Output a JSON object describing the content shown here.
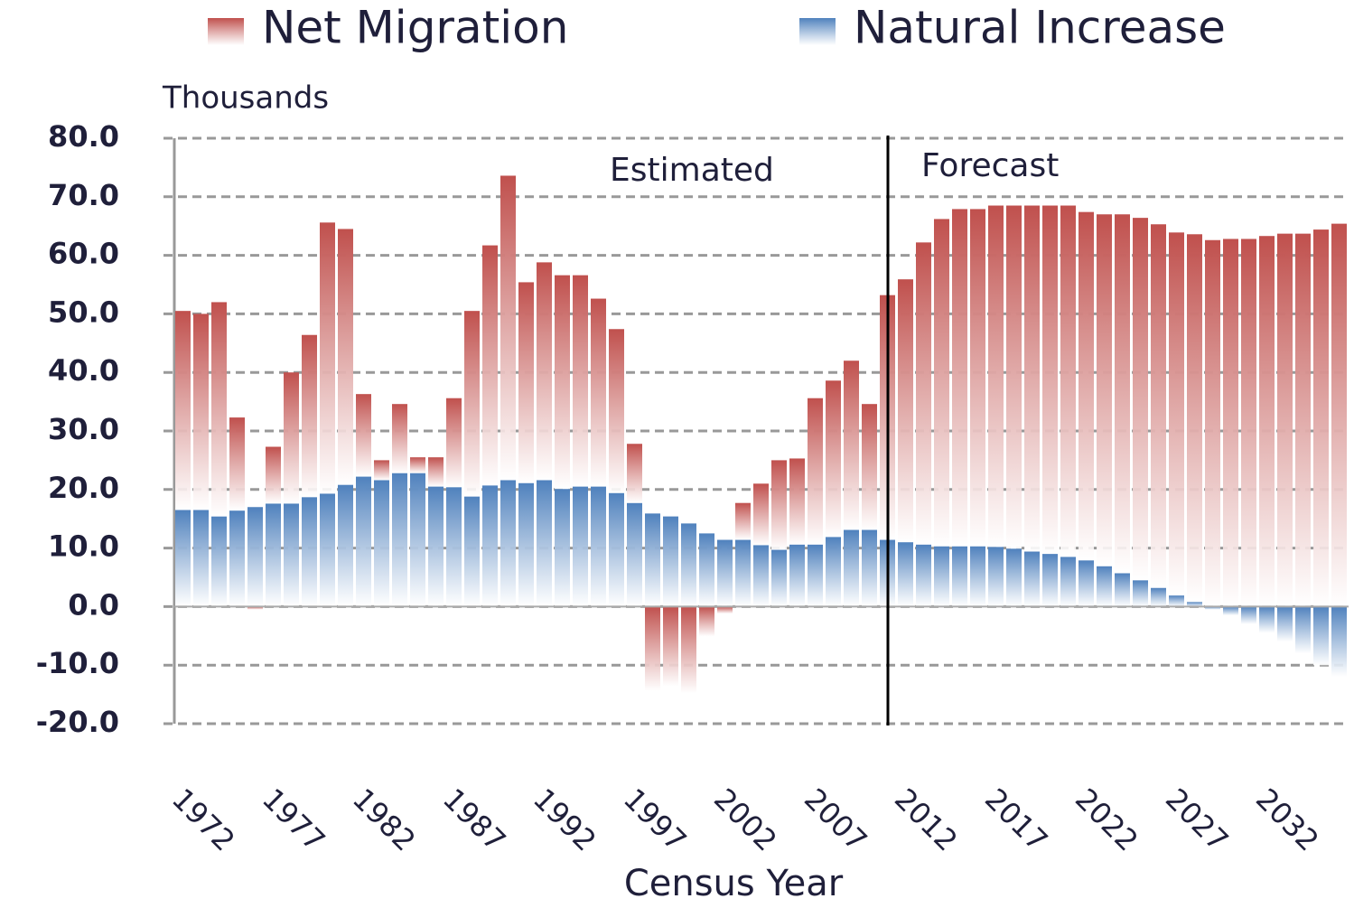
{
  "chart_data": {
    "type": "stacked_bar",
    "title_legend": true,
    "ylabel": "Thousands",
    "xlabel": "Census Year",
    "annotations": [
      "Estimated",
      "Forecast"
    ],
    "categories": [
      "1972",
      null,
      null,
      null,
      null,
      "1977",
      null,
      null,
      null,
      null,
      "1982",
      null,
      null,
      null,
      null,
      "1987",
      null,
      null,
      null,
      null,
      "1992",
      null,
      null,
      null,
      null,
      "1997",
      null,
      null,
      null,
      null,
      "2002",
      null,
      null,
      null,
      null,
      "2007",
      null,
      null,
      null,
      null,
      "2012",
      null,
      null,
      null,
      null,
      "2017",
      null,
      null,
      null,
      null,
      "2022",
      null,
      null,
      null,
      null,
      "2027",
      null,
      null,
      null,
      null,
      "2032",
      null,
      null,
      null,
      null
    ],
    "series": [
      {
        "name": "Natural Increase",
        "color": "#4f81bd",
        "values": [
          16.5,
          16.5,
          15.4,
          16.4,
          17,
          17.6,
          17.6,
          18.7,
          19.3,
          20.8,
          22.2,
          21.6,
          22.8,
          22.8,
          20.5,
          20.4,
          18.8,
          20.7,
          21.6,
          21.1,
          21.6,
          20.1,
          20.5,
          20.5,
          19.4,
          17.7,
          15.9,
          15.4,
          14.2,
          12.5,
          11.4,
          11.4,
          10.5,
          9.7,
          10.6,
          10.6,
          11.9,
          13.1,
          13.1,
          11.4,
          11,
          10.6,
          10.3,
          10.3,
          10.3,
          10.2,
          9.9,
          9.4,
          9,
          8.5,
          7.9,
          6.9,
          5.7,
          4.5,
          3.2,
          1.9,
          0.8,
          -0.5,
          -1.5,
          -3,
          -4.5,
          -6,
          -8,
          -10,
          -12
        ]
      },
      {
        "name": "Net Migration",
        "color": "#c0504d",
        "values": [
          34,
          33.5,
          36.6,
          15.9,
          -0.5,
          9.7,
          22.4,
          27.7,
          46.3,
          43.7,
          14.1,
          3.4,
          11.8,
          2.7,
          5,
          15.2,
          31.7,
          41,
          52,
          34.3,
          37.2,
          36.5,
          36.1,
          32.1,
          28,
          10.1,
          -14.4,
          -13.6,
          -14.8,
          -5.1,
          -1.2,
          6.3,
          10.5,
          15.3,
          14.7,
          25,
          26.7,
          28.9,
          21.5,
          41.8,
          44.9,
          51.6,
          55.9,
          57.6,
          57.6,
          58.3,
          58.6,
          59.1,
          59.5,
          60,
          59.5,
          60.1,
          61.3,
          61.9,
          62.1,
          62,
          62.8,
          62.6,
          62.8,
          62.8,
          63.3,
          63.7,
          63.7,
          64.4,
          65.4
        ]
      }
    ],
    "ylim": [
      -20,
      80
    ],
    "yticks": [
      {
        "value": -20,
        "label": "-20.0"
      },
      {
        "value": -10,
        "label": "-10.0"
      },
      {
        "value": 0,
        "label": "0.0"
      },
      {
        "value": 10,
        "label": "10.0"
      },
      {
        "value": 20,
        "label": "20.0"
      },
      {
        "value": 30,
        "label": "30.0"
      },
      {
        "value": 40,
        "label": "40.0"
      },
      {
        "value": 50,
        "label": "50.0"
      },
      {
        "value": 60,
        "label": "60.0"
      },
      {
        "value": 70,
        "label": "70.0"
      },
      {
        "value": 80,
        "label": "80.0"
      }
    ],
    "grid": true
  }
}
